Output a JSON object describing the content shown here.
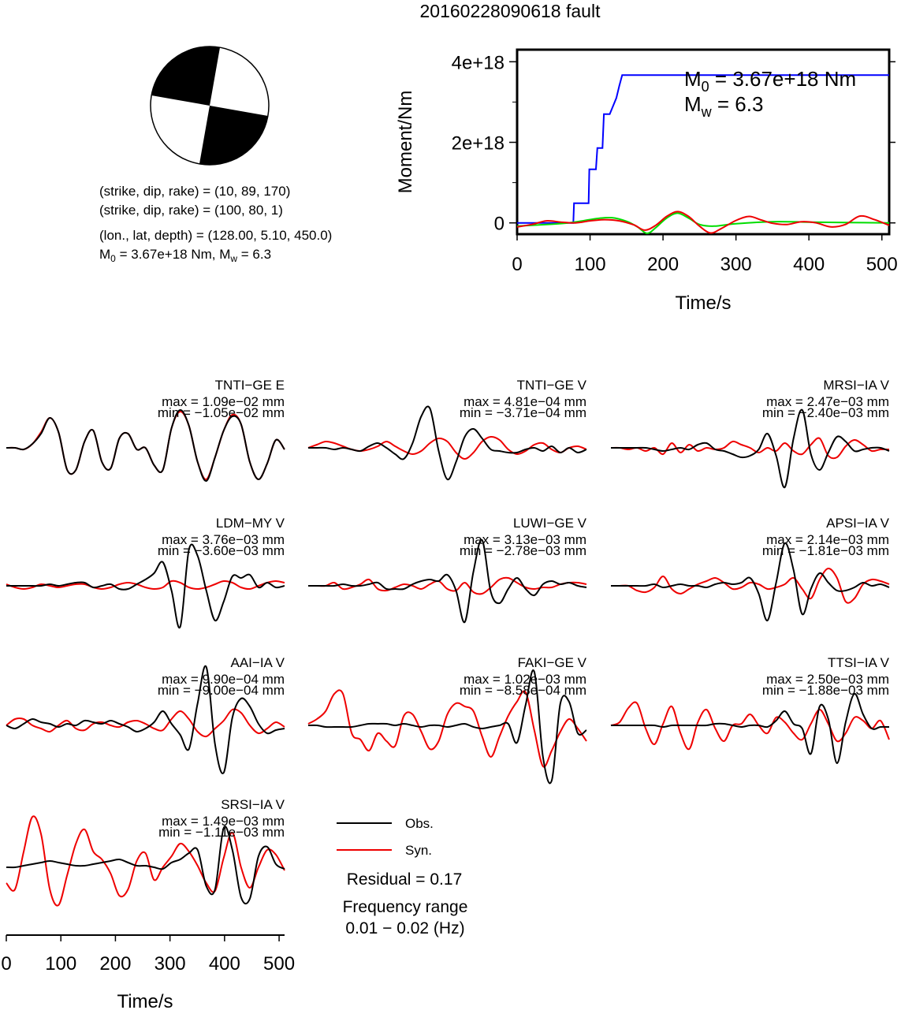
{
  "title": "20160228090618 fault",
  "beachball_caption": {
    "line1": "(strike, dip, rake) = (10, 89, 170)",
    "line2": "(strike, dip, rake) = (100, 80, 1)",
    "line3": "(lon., lat, depth) = (128.00, 5.10, 450.0)",
    "m0_prefix": "M",
    "m0_sub": "0",
    "m0_rest": " = 3.67e+18 Nm, M",
    "mw_sub": "w",
    "mw_rest": " = 6.3"
  },
  "moment_plot": {
    "ylabel": "Moment/Nm",
    "xlabel": "Time/s",
    "annotation_m0_prefix": "M",
    "annotation_m0_sub": "0",
    "annotation_m0_rest": " = 3.67e+18 Nm",
    "annotation_mw_prefix": "M",
    "annotation_mw_sub": "w",
    "annotation_mw_rest": " = 6.3",
    "x_ticks": [
      "0",
      "100",
      "200",
      "300",
      "400",
      "500"
    ],
    "y_ticks": [
      "0",
      "2e+18",
      "4e+18"
    ]
  },
  "chart_data": [
    {
      "type": "line",
      "name": "moment-rate-function",
      "xlim": [
        0,
        510
      ],
      "ylim": [
        -2.8e+17,
        4.3e+18
      ],
      "x_ticks": [
        0,
        100,
        200,
        300,
        400,
        500
      ],
      "y_ticks": [
        0,
        2e+18,
        4e+18
      ],
      "series": [
        {
          "color": "#0000ff",
          "x": [
            0,
            75,
            77,
            78,
            98,
            99,
            108,
            110,
            117,
            119,
            125,
            127,
            136,
            140,
            144,
            510
          ],
          "y": [
            0,
            0,
            0,
            4.9e+17,
            4.9e+17,
            1.33e+18,
            1.33e+18,
            1.86e+18,
            1.86e+18,
            2.7e+18,
            2.7e+18,
            2.7e+18,
            3.1e+18,
            3.4e+18,
            3.67e+18,
            3.67e+18
          ]
        },
        {
          "color": "#00dd00",
          "x": [
            0,
            40,
            70,
            90,
            110,
            130,
            150,
            165,
            178,
            190,
            205,
            220,
            235,
            250,
            270,
            300,
            350,
            400,
            450,
            510
          ],
          "y": [
            -8e+16,
            -4e+16,
            0,
            5e+16,
            1.1e+17,
            1.3e+17,
            4e+16,
            -1e+17,
            -2.6e+17,
            -1.2e+17,
            1.2e+17,
            2.4e+17,
            1.2e+17,
            -4e+16,
            -8e+16,
            -2e+16,
            3e+16,
            2e+16,
            1e+16,
            0
          ]
        },
        {
          "color": "#ee0000",
          "x": [
            0,
            20,
            40,
            60,
            80,
            100,
            120,
            140,
            160,
            175,
            190,
            205,
            220,
            235,
            250,
            265,
            280,
            300,
            318,
            335,
            350,
            370,
            390,
            410,
            430,
            450,
            470,
            490,
            510
          ],
          "y": [
            -1e+17,
            -4e+16,
            5e+16,
            2e+16,
            0,
            5e+16,
            8e+16,
            5e+16,
            -5e+16,
            -1.8e+17,
            -6e+16,
            1.6e+17,
            2.8e+17,
            1.6e+17,
            -8e+16,
            -2.5e+17,
            -1.4e+17,
            6e+16,
            1.6e+17,
            7e+16,
            -1e+16,
            -4e+16,
            3e+16,
            0,
            -1e+17,
            -4e+16,
            1.7e+17,
            8e+16,
            -6e+16
          ]
        }
      ]
    },
    {
      "type": "line",
      "name": "waveforms",
      "xlabel": "Time/s",
      "xlim": [
        0,
        510
      ],
      "x_ticks": [
        "0",
        "100",
        "200",
        "300",
        "400",
        "500"
      ],
      "legend": {
        "obs": "Obs.",
        "syn": "Syn.",
        "obs_color": "#000000",
        "syn_color": "#ee0000"
      },
      "residual": "Residual = 0.17",
      "freq_label": "Frequency range",
      "freq_range": "0.01 − 0.02 (Hz)",
      "stations": [
        {
          "name": "TNTI−GE E",
          "max": "max = 1.09e−02 mm",
          "min": "min = −1.05e−02 mm",
          "obs": [
            0,
            0,
            -2,
            5,
            18,
            38,
            20,
            -28,
            -28,
            8,
            22,
            -18,
            -26,
            12,
            18,
            -2,
            0,
            -22,
            -28,
            25,
            48,
            28,
            -18,
            -42,
            -12,
            22,
            40,
            30,
            -18,
            -40,
            -20,
            10,
            -2
          ],
          "syn": [
            0,
            0,
            -2,
            5,
            20,
            38,
            20,
            -28,
            -28,
            8,
            22,
            -18,
            -26,
            12,
            18,
            -2,
            0,
            -22,
            -28,
            25,
            46,
            28,
            -18,
            -40,
            -12,
            22,
            42,
            30,
            -18,
            -40,
            -20,
            10,
            -2
          ]
        },
        {
          "name": "TNTI−GE V",
          "max": "max = 4.81e−04 mm",
          "min": "min = −3.71e−04 mm",
          "obs": [
            0,
            0,
            0,
            -2,
            0,
            -2,
            -4,
            2,
            6,
            0,
            -8,
            -14,
            6,
            40,
            50,
            -4,
            -40,
            -18,
            14,
            24,
            12,
            -2,
            -4,
            -6,
            -6,
            -2,
            0,
            -4,
            2,
            -6,
            0,
            -6,
            -2
          ],
          "syn": [
            0,
            4,
            8,
            6,
            2,
            -2,
            -4,
            -2,
            2,
            8,
            2,
            -4,
            -8,
            -4,
            6,
            12,
            8,
            -6,
            -14,
            -6,
            8,
            14,
            10,
            -2,
            -8,
            -4,
            4,
            6,
            -2,
            -6,
            0,
            2,
            -2
          ]
        },
        {
          "name": "MRSI−IA V",
          "max": "max = 2.47e−03 mm",
          "min": "min = −2.40e−03 mm",
          "obs": [
            0,
            0,
            0,
            0,
            0,
            -2,
            -4,
            -2,
            0,
            -2,
            4,
            6,
            -2,
            -4,
            -8,
            -12,
            -10,
            -2,
            18,
            -10,
            -50,
            12,
            48,
            -8,
            -28,
            -6,
            14,
            8,
            -4,
            -2,
            0,
            0,
            -4
          ],
          "syn": [
            0,
            0,
            -2,
            0,
            -4,
            0,
            -8,
            6,
            -6,
            4,
            -4,
            0,
            -2,
            0,
            8,
            4,
            0,
            -6,
            0,
            -4,
            6,
            -4,
            -8,
            4,
            12,
            -10,
            -12,
            2,
            10,
            4,
            -4,
            -2,
            -2
          ]
        },
        {
          "name": "LDM−MY V",
          "max": "max = 3.76e−03 mm",
          "min": "min = −3.60e−03 mm",
          "obs": [
            0,
            0,
            0,
            0,
            0,
            2,
            0,
            2,
            4,
            4,
            -2,
            0,
            2,
            -4,
            -4,
            2,
            8,
            16,
            30,
            -6,
            -52,
            46,
            38,
            -6,
            -44,
            -20,
            12,
            10,
            14,
            -2,
            4,
            -2,
            0
          ],
          "syn": [
            2,
            -2,
            -4,
            -2,
            2,
            0,
            -2,
            0,
            2,
            2,
            -2,
            -4,
            -2,
            2,
            4,
            2,
            -2,
            -4,
            -2,
            6,
            4,
            -2,
            -4,
            -2,
            2,
            6,
            4,
            -2,
            -4,
            0,
            4,
            6,
            4
          ]
        },
        {
          "name": "LUWI−GE V",
          "max": "max = 3.13e−03 mm",
          "min": "min = −2.78e−03 mm",
          "obs": [
            0,
            0,
            0,
            0,
            2,
            0,
            0,
            2,
            4,
            -4,
            -4,
            -4,
            2,
            6,
            8,
            6,
            14,
            -6,
            -46,
            18,
            58,
            -8,
            -22,
            -4,
            10,
            -4,
            -12,
            2,
            6,
            2,
            4,
            0,
            -2
          ],
          "syn": [
            0,
            0,
            0,
            4,
            -4,
            -2,
            2,
            8,
            -4,
            -6,
            -2,
            2,
            0,
            -4,
            2,
            6,
            -4,
            -6,
            4,
            -8,
            -10,
            -2,
            8,
            10,
            4,
            -2,
            -4,
            -2,
            -2,
            2,
            4,
            4,
            2
          ]
        },
        {
          "name": "APSI−IA V",
          "max": "max = 2.14e−03 mm",
          "min": "min = −1.81e−03 mm",
          "obs": [
            0,
            0,
            0,
            0,
            0,
            2,
            -2,
            0,
            2,
            0,
            0,
            -2,
            2,
            4,
            2,
            4,
            10,
            -10,
            -44,
            4,
            54,
            20,
            -36,
            -4,
            16,
            4,
            -6,
            -6,
            -2,
            4,
            0,
            2,
            -2
          ],
          "syn": [
            0,
            0,
            0,
            -6,
            -8,
            -2,
            12,
            -4,
            -10,
            -4,
            2,
            6,
            10,
            4,
            -4,
            -2,
            4,
            2,
            -4,
            -2,
            2,
            10,
            -4,
            -16,
            8,
            22,
            10,
            -20,
            -16,
            2,
            8,
            6,
            2
          ]
        },
        {
          "name": "AAI−IA V",
          "max": "max = 9.90e−04 mm",
          "min": "min = −9.00e−04 mm",
          "obs": [
            0,
            -4,
            2,
            8,
            4,
            2,
            -2,
            2,
            0,
            6,
            4,
            2,
            6,
            2,
            -2,
            -8,
            -4,
            4,
            18,
            2,
            -12,
            -30,
            28,
            74,
            -24,
            -60,
            10,
            34,
            24,
            2,
            -10,
            -6,
            -4
          ],
          "syn": [
            0,
            8,
            8,
            0,
            -4,
            -8,
            0,
            6,
            -4,
            -6,
            2,
            4,
            0,
            -2,
            4,
            6,
            2,
            -4,
            -6,
            8,
            18,
            8,
            -8,
            -14,
            -4,
            6,
            20,
            16,
            0,
            -10,
            -4,
            4,
            -2
          ]
        },
        {
          "name": "FAKI−GE V",
          "max": "max = 1.02e−03 mm",
          "min": "min = −8.58e−04 mm",
          "obs": [
            0,
            0,
            -2,
            -2,
            -2,
            -2,
            0,
            2,
            2,
            2,
            0,
            2,
            0,
            -2,
            0,
            0,
            -2,
            0,
            2,
            -2,
            -4,
            -2,
            0,
            2,
            -22,
            26,
            68,
            -40,
            -70,
            28,
            30,
            -10,
            -6
          ],
          "syn": [
            2,
            8,
            18,
            40,
            40,
            -10,
            -18,
            -32,
            -10,
            -20,
            -26,
            12,
            14,
            -8,
            -30,
            -20,
            14,
            28,
            24,
            18,
            -14,
            -40,
            -14,
            12,
            30,
            42,
            -6,
            -52,
            -32,
            -8,
            8,
            -4,
            -20
          ]
        },
        {
          "name": "TTSI−IA V",
          "max": "max = 2.50e−03 mm",
          "min": "min = −1.88e−03 mm",
          "obs": [
            0,
            0,
            0,
            0,
            0,
            0,
            -2,
            0,
            0,
            0,
            0,
            0,
            2,
            2,
            0,
            -2,
            0,
            0,
            -2,
            6,
            18,
            2,
            -4,
            -36,
            24,
            8,
            -48,
            4,
            40,
            14,
            -4,
            -2,
            -2
          ],
          "syn": [
            0,
            4,
            22,
            28,
            -4,
            -24,
            2,
            24,
            -10,
            -30,
            4,
            20,
            -4,
            -20,
            0,
            2,
            14,
            0,
            -10,
            10,
            4,
            -10,
            -18,
            2,
            20,
            2,
            -20,
            -10,
            10,
            6,
            -4,
            6,
            -18
          ]
        },
        {
          "name": "SRSI−IA V",
          "max": "max = 1.49e−03 mm",
          "min": "min = −1.11e−03 mm",
          "obs": [
            0,
            0,
            2,
            4,
            6,
            8,
            6,
            4,
            2,
            2,
            4,
            6,
            8,
            10,
            6,
            2,
            2,
            0,
            -2,
            6,
            10,
            18,
            22,
            -24,
            -28,
            50,
            22,
            -38,
            -40,
            14,
            26,
            4,
            -2
          ],
          "syn": [
            -20,
            -28,
            20,
            64,
            42,
            -28,
            -48,
            -10,
            30,
            48,
            20,
            10,
            -8,
            -36,
            -28,
            8,
            18,
            -16,
            0,
            14,
            30,
            20,
            2,
            -20,
            -30,
            12,
            44,
            0,
            -26,
            0,
            22,
            16,
            -4
          ]
        }
      ]
    }
  ]
}
